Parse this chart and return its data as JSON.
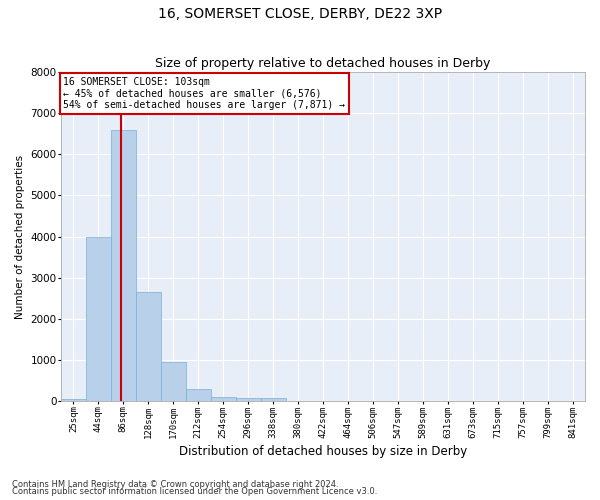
{
  "title1": "16, SOMERSET CLOSE, DERBY, DE22 3XP",
  "title2": "Size of property relative to detached houses in Derby",
  "xlabel": "Distribution of detached houses by size in Derby",
  "ylabel": "Number of detached properties",
  "bar_color": "#b8d0ea",
  "bar_edge_color": "#7aafd4",
  "background_color": "#e8eef8",
  "grid_color": "#ffffff",
  "property_line_color": "#cc0000",
  "annotation_text": "16 SOMERSET CLOSE: 103sqm\n← 45% of detached houses are smaller (6,576)\n54% of semi-detached houses are larger (7,871) →",
  "annotation_box_color": "#ffffff",
  "annotation_box_edge": "#cc0000",
  "categories": [
    "25sqm",
    "44sqm",
    "86sqm",
    "128sqm",
    "170sqm",
    "212sqm",
    "254sqm",
    "296sqm",
    "338sqm",
    "380sqm",
    "422sqm",
    "464sqm",
    "506sqm",
    "547sqm",
    "589sqm",
    "631sqm",
    "673sqm",
    "715sqm",
    "757sqm",
    "799sqm",
    "841sqm"
  ],
  "bin_starts": [
    2,
    44,
    86,
    128,
    170,
    212,
    254,
    296,
    338,
    380,
    422,
    464,
    506,
    547,
    589,
    631,
    673,
    715,
    757,
    799,
    841
  ],
  "bin_width": 42,
  "bar_heights": [
    60,
    4000,
    6600,
    2650,
    950,
    290,
    110,
    80,
    70,
    0,
    0,
    0,
    0,
    0,
    0,
    0,
    0,
    0,
    0,
    0,
    0
  ],
  "property_x": 103,
  "ylim": [
    0,
    8000
  ],
  "xlim_left": 2,
  "xlim_right": 883,
  "yticks": [
    0,
    1000,
    2000,
    3000,
    4000,
    5000,
    6000,
    7000,
    8000
  ],
  "footer1": "Contains HM Land Registry data © Crown copyright and database right 2024.",
  "footer2": "Contains public sector information licensed under the Open Government Licence v3.0."
}
